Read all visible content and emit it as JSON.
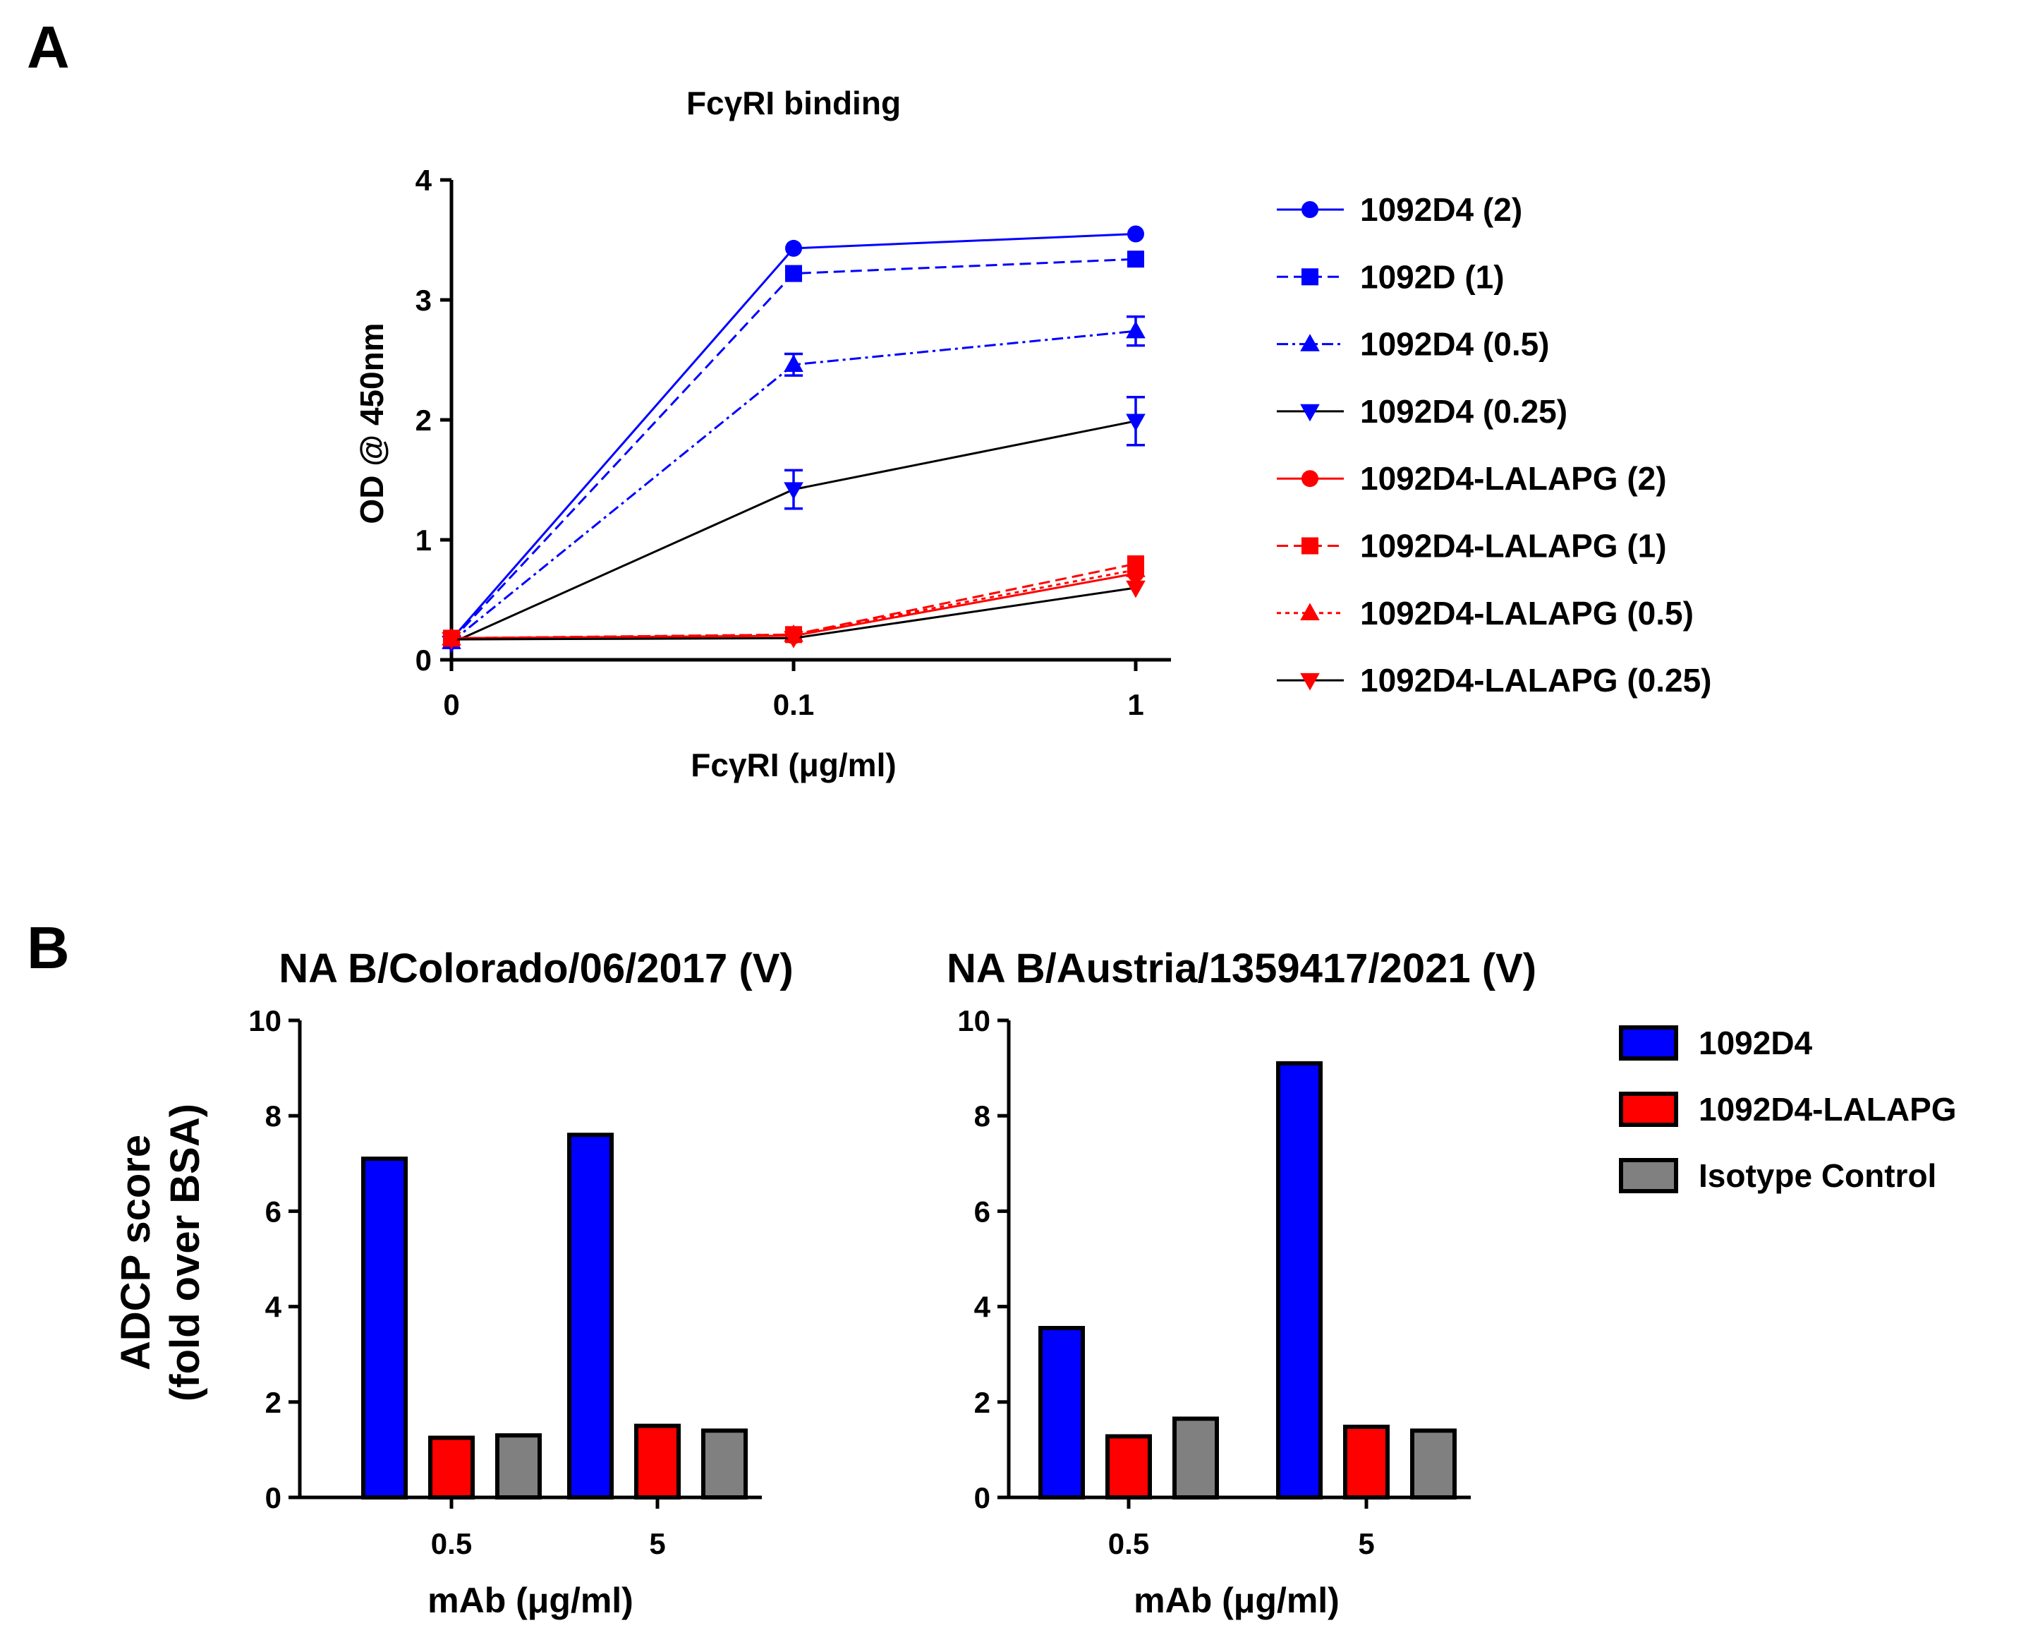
{
  "panels": {
    "a": "A",
    "b": "B"
  },
  "colors": {
    "blue": "#0000ff",
    "red": "#ff0000",
    "gray": "#808080",
    "black": "#000000"
  },
  "chart_data": [
    {
      "type": "line",
      "title": "FcγRI binding",
      "xlabel": "FcγRI (μg/ml)",
      "ylabel": "OD @ 450nm",
      "categories": [
        "0",
        "0.1",
        "1"
      ],
      "ylim": [
        0,
        4
      ],
      "yticks": [
        "0",
        "1",
        "2",
        "3",
        "4"
      ],
      "series": [
        {
          "name": "1092D4 (2)",
          "color": "blue",
          "marker": "circle",
          "dash": "solid",
          "values": [
            0.17,
            3.43,
            3.55
          ],
          "err": [
            0,
            0,
            0
          ]
        },
        {
          "name": "1092D (1)",
          "color": "blue",
          "marker": "square",
          "dash": "dashed",
          "values": [
            0.16,
            3.22,
            3.34
          ],
          "err": [
            0,
            0,
            0
          ]
        },
        {
          "name": "1092D4 (0.5)",
          "color": "blue",
          "marker": "triangle-up",
          "dash": "dashdot",
          "values": [
            0.15,
            2.46,
            2.74
          ],
          "err": [
            0,
            0.09,
            0.12
          ]
        },
        {
          "name": "1092D4 (0.25)",
          "color": "blue",
          "marker": "triangle-down",
          "dash": "solid-black",
          "values": [
            0.14,
            1.42,
            1.99
          ],
          "err": [
            0,
            0.16,
            0.2
          ]
        },
        {
          "name": "1092D4-LALAPG (2)",
          "color": "red",
          "marker": "circle",
          "dash": "solid",
          "values": [
            0.18,
            0.2,
            0.72
          ],
          "err": [
            0,
            0,
            0
          ]
        },
        {
          "name": "1092D4-LALAPG (1)",
          "color": "red",
          "marker": "square",
          "dash": "dashed",
          "values": [
            0.18,
            0.21,
            0.8
          ],
          "err": [
            0,
            0,
            0
          ]
        },
        {
          "name": "1092D4-LALAPG (0.5)",
          "color": "red",
          "marker": "triangle-up",
          "dash": "dotted",
          "values": [
            0.18,
            0.21,
            0.75
          ],
          "err": [
            0,
            0,
            0
          ]
        },
        {
          "name": "1092D4-LALAPG (0.25)",
          "color": "red",
          "marker": "triangle-down",
          "dash": "solid-black",
          "values": [
            0.17,
            0.18,
            0.6
          ],
          "err": [
            0,
            0,
            0
          ]
        }
      ]
    },
    {
      "type": "bar",
      "title": "NA B/Colorado/06/2017 (V)",
      "xlabel": "mAb (μg/ml)",
      "ylabel": "ADCP score (fold over BSA)",
      "ylabel_lines": [
        "ADCP score",
        "(fold over BSA)"
      ],
      "categories": [
        "0.5",
        "5"
      ],
      "ylim": [
        0,
        10
      ],
      "yticks": [
        "0",
        "2",
        "4",
        "6",
        "8",
        "10"
      ],
      "series": [
        {
          "name": "1092D4",
          "color": "blue",
          "values": [
            7.1,
            7.6
          ]
        },
        {
          "name": "1092D4-LALAPG",
          "color": "red",
          "values": [
            1.25,
            1.5
          ]
        },
        {
          "name": "Isotype Control",
          "color": "gray",
          "values": [
            1.3,
            1.4
          ]
        }
      ]
    },
    {
      "type": "bar",
      "title": "NA B/Austria/1359417/2021 (V)",
      "xlabel": "mAb (μg/ml)",
      "categories": [
        "0.5",
        "5"
      ],
      "ylim": [
        0,
        10
      ],
      "yticks": [
        "0",
        "2",
        "4",
        "6",
        "8",
        "10"
      ],
      "series": [
        {
          "name": "1092D4",
          "color": "blue",
          "values": [
            3.55,
            9.1
          ]
        },
        {
          "name": "1092D4-LALAPG",
          "color": "red",
          "values": [
            1.28,
            1.48
          ]
        },
        {
          "name": "Isotype Control",
          "color": "gray",
          "values": [
            1.65,
            1.4
          ]
        }
      ],
      "legend": [
        "1092D4",
        "1092D4-LALAPG",
        "Isotype Control"
      ]
    }
  ]
}
